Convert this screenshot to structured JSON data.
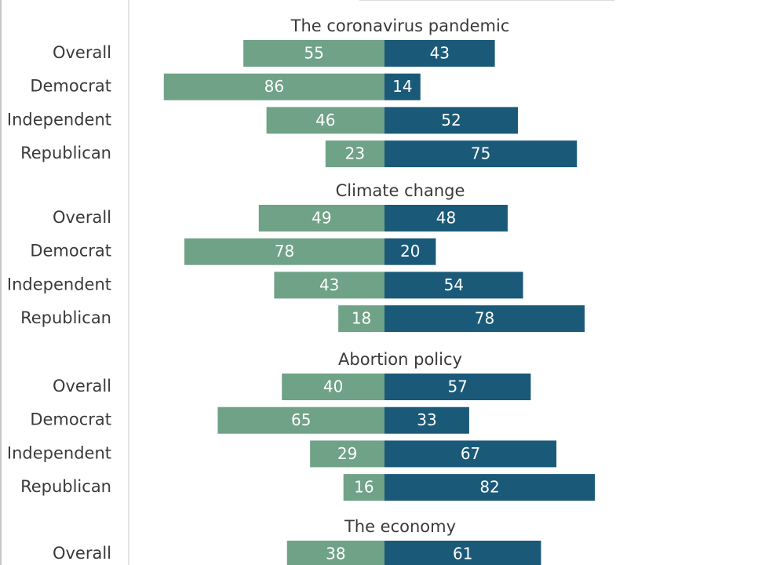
{
  "chart_data": {
    "type": "bar",
    "orientation": "horizontal-diverging",
    "colors": {
      "left": "#6fa287",
      "right": "#1a5a78",
      "axis": "#dcdcdc",
      "frame": "#c8c8c8"
    },
    "groups": [
      {
        "title": "The coronavirus pandemic",
        "categories": [
          "Overall",
          "Democrat",
          "Independent",
          "Republican"
        ],
        "left_values": [
          55,
          86,
          46,
          23
        ],
        "right_values": [
          43,
          14,
          52,
          75
        ]
      },
      {
        "title": "Climate change",
        "categories": [
          "Overall",
          "Democrat",
          "Independent",
          "Republican"
        ],
        "left_values": [
          49,
          78,
          43,
          18
        ],
        "right_values": [
          48,
          20,
          54,
          78
        ]
      },
      {
        "title": "Abortion policy",
        "categories": [
          "Overall",
          "Democrat",
          "Independent",
          "Republican"
        ],
        "left_values": [
          40,
          65,
          29,
          16
        ],
        "right_values": [
          57,
          33,
          67,
          82
        ]
      },
      {
        "title": "The economy",
        "categories": [
          "Overall"
        ],
        "left_values": [
          38
        ],
        "right_values": [
          61
        ]
      }
    ]
  }
}
